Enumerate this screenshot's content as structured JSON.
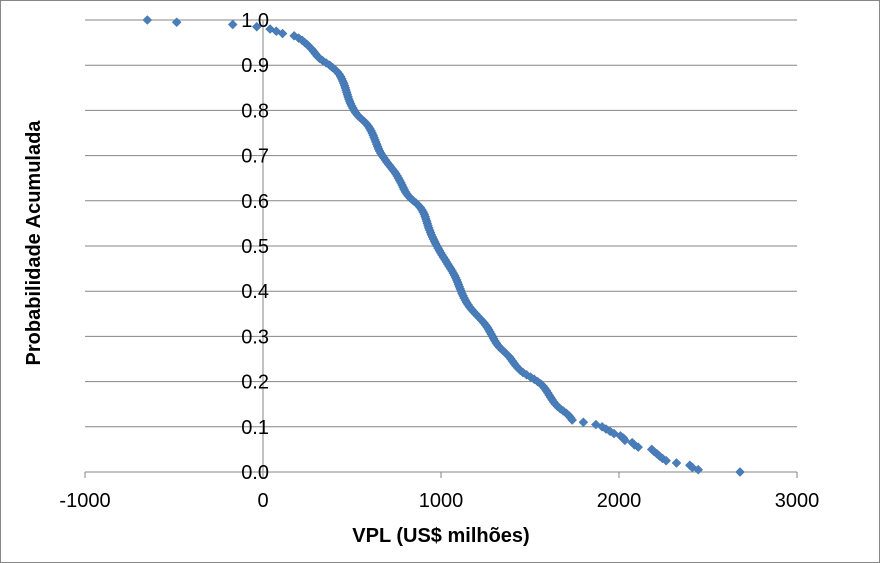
{
  "chart_data": {
    "type": "scatter",
    "title": "",
    "xlabel": "VPL (US$ milhões)",
    "ylabel": "Probabilidade Acumulada",
    "xlim": [
      -1000,
      3000
    ],
    "ylim": [
      0,
      1
    ],
    "x_ticks": [
      "-1000",
      "0",
      "1000",
      "2000",
      "3000"
    ],
    "y_ticks": [
      "0.0",
      "0.1",
      "0.2",
      "0.3",
      "0.4",
      "0.5",
      "0.6",
      "0.7",
      "0.8",
      "0.9",
      "1.0"
    ],
    "grid": "horizontal",
    "legend": "none",
    "marker": "diamond",
    "series_color": "#4a7ebb",
    "series": [
      {
        "points": [
          [
            -650,
            1.0
          ],
          [
            -485,
            0.995
          ],
          [
            -170,
            0.99
          ],
          [
            -35,
            0.985
          ],
          [
            40,
            0.98
          ],
          [
            75,
            0.975
          ],
          [
            110,
            0.97
          ],
          [
            175,
            0.965
          ],
          [
            200,
            0.96
          ],
          [
            220,
            0.955
          ],
          [
            235,
            0.95
          ],
          [
            250,
            0.945
          ],
          [
            262,
            0.94
          ],
          [
            275,
            0.935
          ],
          [
            285,
            0.93
          ],
          [
            295,
            0.925
          ],
          [
            305,
            0.92
          ],
          [
            318,
            0.915
          ],
          [
            335,
            0.91
          ],
          [
            355,
            0.905
          ],
          [
            375,
            0.9
          ],
          [
            390,
            0.895
          ],
          [
            405,
            0.89
          ],
          [
            418,
            0.885
          ],
          [
            428,
            0.88
          ],
          [
            436,
            0.875
          ],
          [
            442,
            0.87
          ],
          [
            448,
            0.865
          ],
          [
            453,
            0.86
          ],
          [
            458,
            0.855
          ],
          [
            462,
            0.85
          ],
          [
            466,
            0.845
          ],
          [
            470,
            0.84
          ],
          [
            474,
            0.835
          ],
          [
            478,
            0.83
          ],
          [
            482,
            0.825
          ],
          [
            487,
            0.82
          ],
          [
            492,
            0.815
          ],
          [
            498,
            0.81
          ],
          [
            505,
            0.805
          ],
          [
            512,
            0.8
          ],
          [
            520,
            0.795
          ],
          [
            530,
            0.79
          ],
          [
            542,
            0.785
          ],
          [
            556,
            0.78
          ],
          [
            570,
            0.775
          ],
          [
            582,
            0.77
          ],
          [
            592,
            0.765
          ],
          [
            600,
            0.76
          ],
          [
            607,
            0.755
          ],
          [
            613,
            0.75
          ],
          [
            619,
            0.745
          ],
          [
            624,
            0.74
          ],
          [
            629,
            0.735
          ],
          [
            634,
            0.73
          ],
          [
            639,
            0.725
          ],
          [
            644,
            0.72
          ],
          [
            649,
            0.715
          ],
          [
            655,
            0.71
          ],
          [
            662,
            0.705
          ],
          [
            670,
            0.7
          ],
          [
            679,
            0.695
          ],
          [
            688,
            0.69
          ],
          [
            697,
            0.685
          ],
          [
            707,
            0.68
          ],
          [
            717,
            0.675
          ],
          [
            727,
            0.67
          ],
          [
            737,
            0.665
          ],
          [
            746,
            0.66
          ],
          [
            754,
            0.655
          ],
          [
            761,
            0.65
          ],
          [
            768,
            0.645
          ],
          [
            775,
            0.64
          ],
          [
            781,
            0.635
          ],
          [
            787,
            0.63
          ],
          [
            793,
            0.625
          ],
          [
            800,
            0.62
          ],
          [
            808,
            0.615
          ],
          [
            818,
            0.61
          ],
          [
            830,
            0.605
          ],
          [
            845,
            0.6
          ],
          [
            860,
            0.595
          ],
          [
            873,
            0.59
          ],
          [
            884,
            0.585
          ],
          [
            893,
            0.58
          ],
          [
            900,
            0.575
          ],
          [
            906,
            0.57
          ],
          [
            911,
            0.565
          ],
          [
            915,
            0.56
          ],
          [
            919,
            0.555
          ],
          [
            923,
            0.55
          ],
          [
            927,
            0.545
          ],
          [
            931,
            0.54
          ],
          [
            936,
            0.535
          ],
          [
            941,
            0.53
          ],
          [
            946,
            0.525
          ],
          [
            952,
            0.52
          ],
          [
            958,
            0.515
          ],
          [
            964,
            0.51
          ],
          [
            970,
            0.505
          ],
          [
            977,
            0.5
          ],
          [
            984,
            0.495
          ],
          [
            991,
            0.49
          ],
          [
            998,
            0.485
          ],
          [
            1006,
            0.48
          ],
          [
            1014,
            0.475
          ],
          [
            1022,
            0.47
          ],
          [
            1030,
            0.465
          ],
          [
            1038,
            0.46
          ],
          [
            1046,
            0.455
          ],
          [
            1054,
            0.45
          ],
          [
            1062,
            0.445
          ],
          [
            1069,
            0.44
          ],
          [
            1076,
            0.435
          ],
          [
            1082,
            0.43
          ],
          [
            1088,
            0.425
          ],
          [
            1093,
            0.42
          ],
          [
            1098,
            0.415
          ],
          [
            1103,
            0.41
          ],
          [
            1108,
            0.405
          ],
          [
            1113,
            0.4
          ],
          [
            1118,
            0.395
          ],
          [
            1124,
            0.39
          ],
          [
            1130,
            0.385
          ],
          [
            1137,
            0.38
          ],
          [
            1144,
            0.375
          ],
          [
            1152,
            0.37
          ],
          [
            1161,
            0.365
          ],
          [
            1171,
            0.36
          ],
          [
            1182,
            0.355
          ],
          [
            1194,
            0.35
          ],
          [
            1206,
            0.345
          ],
          [
            1218,
            0.34
          ],
          [
            1230,
            0.335
          ],
          [
            1241,
            0.33
          ],
          [
            1251,
            0.325
          ],
          [
            1260,
            0.32
          ],
          [
            1268,
            0.315
          ],
          [
            1275,
            0.31
          ],
          [
            1282,
            0.305
          ],
          [
            1289,
            0.3
          ],
          [
            1296,
            0.295
          ],
          [
            1303,
            0.29
          ],
          [
            1311,
            0.285
          ],
          [
            1320,
            0.28
          ],
          [
            1331,
            0.275
          ],
          [
            1344,
            0.27
          ],
          [
            1358,
            0.265
          ],
          [
            1371,
            0.26
          ],
          [
            1383,
            0.255
          ],
          [
            1393,
            0.25
          ],
          [
            1402,
            0.245
          ],
          [
            1411,
            0.24
          ],
          [
            1421,
            0.235
          ],
          [
            1432,
            0.23
          ],
          [
            1445,
            0.225
          ],
          [
            1461,
            0.22
          ],
          [
            1481,
            0.215
          ],
          [
            1503,
            0.21
          ],
          [
            1524,
            0.205
          ],
          [
            1543,
            0.2
          ],
          [
            1560,
            0.195
          ],
          [
            1573,
            0.19
          ],
          [
            1583,
            0.185
          ],
          [
            1592,
            0.18
          ],
          [
            1600,
            0.175
          ],
          [
            1608,
            0.17
          ],
          [
            1616,
            0.165
          ],
          [
            1624,
            0.16
          ],
          [
            1633,
            0.155
          ],
          [
            1643,
            0.15
          ],
          [
            1655,
            0.145
          ],
          [
            1670,
            0.14
          ],
          [
            1687,
            0.135
          ],
          [
            1704,
            0.13
          ],
          [
            1718,
            0.125
          ],
          [
            1728,
            0.12
          ],
          [
            1737,
            0.115
          ],
          [
            1800,
            0.11
          ],
          [
            1870,
            0.105
          ],
          [
            1905,
            0.1
          ],
          [
            1927,
            0.095
          ],
          [
            1950,
            0.09
          ],
          [
            1972,
            0.085
          ],
          [
            2008,
            0.08
          ],
          [
            2025,
            0.075
          ],
          [
            2033,
            0.07
          ],
          [
            2074,
            0.065
          ],
          [
            2087,
            0.06
          ],
          [
            2108,
            0.055
          ],
          [
            2184,
            0.05
          ],
          [
            2198,
            0.045
          ],
          [
            2214,
            0.04
          ],
          [
            2228,
            0.035
          ],
          [
            2245,
            0.03
          ],
          [
            2265,
            0.025
          ],
          [
            2323,
            0.02
          ],
          [
            2398,
            0.015
          ],
          [
            2412,
            0.01
          ],
          [
            2445,
            0.005
          ],
          [
            2680,
            0.0
          ]
        ]
      }
    ]
  }
}
